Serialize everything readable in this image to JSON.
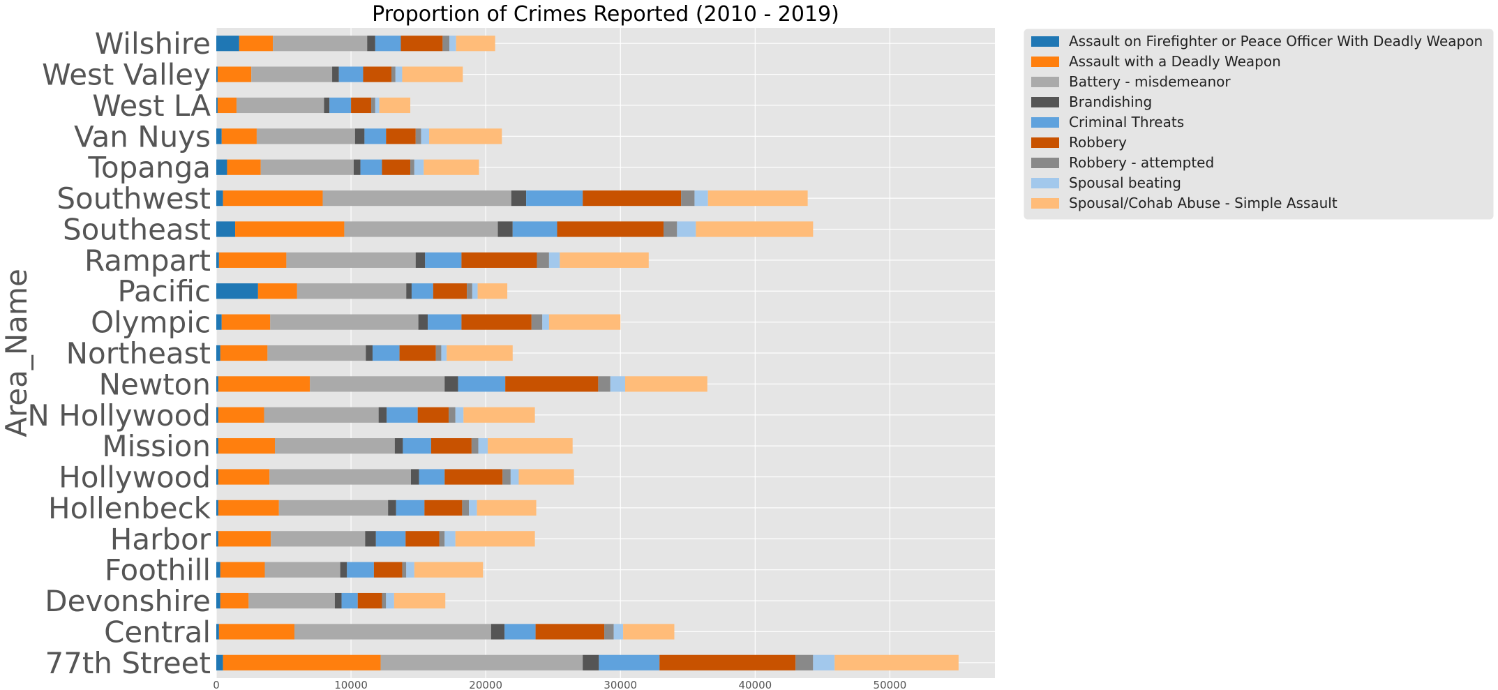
{
  "chart_data": {
    "type": "bar",
    "orientation": "horizontal",
    "stacked": true,
    "title": "Proportion of Crimes Reported (2010 - 2019)",
    "xlabel": "",
    "ylabel": "Area_Name",
    "xlim": [
      0,
      57800
    ],
    "xticks": [
      0,
      10000,
      20000,
      30000,
      40000,
      50000
    ],
    "grid": true,
    "legend_position": "outside-top-right",
    "categories": [
      "77th Street",
      "Central",
      "Devonshire",
      "Foothill",
      "Harbor",
      "Hollenbeck",
      "Hollywood",
      "Mission",
      "N Hollywood",
      "Newton",
      "Northeast",
      "Olympic",
      "Pacific",
      "Rampart",
      "Southeast",
      "Southwest",
      "Topanga",
      "Van Nuys",
      "West LA",
      "West Valley",
      "Wilshire"
    ],
    "series": [
      {
        "name": "Assault on Firefighter or Peace Officer With Deadly Weapon",
        "color": "#1f77b4",
        "values": [
          500,
          200,
          300,
          300,
          150,
          150,
          150,
          150,
          150,
          150,
          300,
          400,
          3100,
          200,
          1400,
          500,
          800,
          400,
          100,
          100,
          1700
        ]
      },
      {
        "name": "Assault with a Deadly Weapon",
        "color": "#ff7f0e",
        "values": [
          11700,
          5600,
          2100,
          3300,
          3900,
          4500,
          3800,
          4200,
          3400,
          6800,
          3500,
          3600,
          2900,
          5000,
          8100,
          7400,
          2500,
          2600,
          1400,
          2500,
          2500
        ]
      },
      {
        "name": "Battery - misdemeanor",
        "color": "#aaaaaa",
        "values": [
          15000,
          14600,
          6400,
          5600,
          7000,
          8100,
          10500,
          8900,
          8500,
          10000,
          7300,
          11000,
          8100,
          9600,
          11400,
          14000,
          6900,
          7300,
          6500,
          6000,
          7000
        ]
      },
      {
        "name": "Brandishing",
        "color": "#555555",
        "values": [
          1200,
          1000,
          500,
          500,
          800,
          600,
          600,
          600,
          600,
          1000,
          500,
          700,
          400,
          700,
          1100,
          1100,
          500,
          700,
          400,
          500,
          600
        ]
      },
      {
        "name": "Criminal Threats",
        "color": "#5fa2dd",
        "values": [
          4500,
          2300,
          1200,
          2000,
          2200,
          2100,
          1900,
          2100,
          2300,
          3500,
          2000,
          2500,
          1600,
          2700,
          3300,
          4200,
          1600,
          1600,
          1600,
          1800,
          1900
        ]
      },
      {
        "name": "Robbery",
        "color": "#c85200",
        "values": [
          10100,
          5100,
          1800,
          2100,
          2500,
          2800,
          4300,
          3000,
          2300,
          6900,
          2700,
          5200,
          2500,
          5600,
          7900,
          7300,
          2100,
          2200,
          1500,
          2100,
          3100
        ]
      },
      {
        "name": "Robbery - attempted",
        "color": "#898989",
        "values": [
          1300,
          700,
          300,
          300,
          400,
          500,
          600,
          500,
          500,
          900,
          400,
          800,
          400,
          900,
          1000,
          1000,
          300,
          400,
          300,
          300,
          500
        ]
      },
      {
        "name": "Spousal beating",
        "color": "#a2c8ec",
        "values": [
          1600,
          700,
          600,
          600,
          800,
          600,
          600,
          700,
          600,
          1100,
          400,
          500,
          400,
          800,
          1400,
          1000,
          700,
          600,
          300,
          500,
          500
        ]
      },
      {
        "name": "Spousal/Cohab Abuse - Simple Assault",
        "color": "#ffbc79",
        "values": [
          9200,
          3800,
          3800,
          5100,
          5900,
          4400,
          4100,
          6300,
          5300,
          6100,
          4900,
          5300,
          2200,
          6600,
          8700,
          7400,
          4100,
          5400,
          2300,
          4500,
          2900
        ]
      }
    ]
  }
}
